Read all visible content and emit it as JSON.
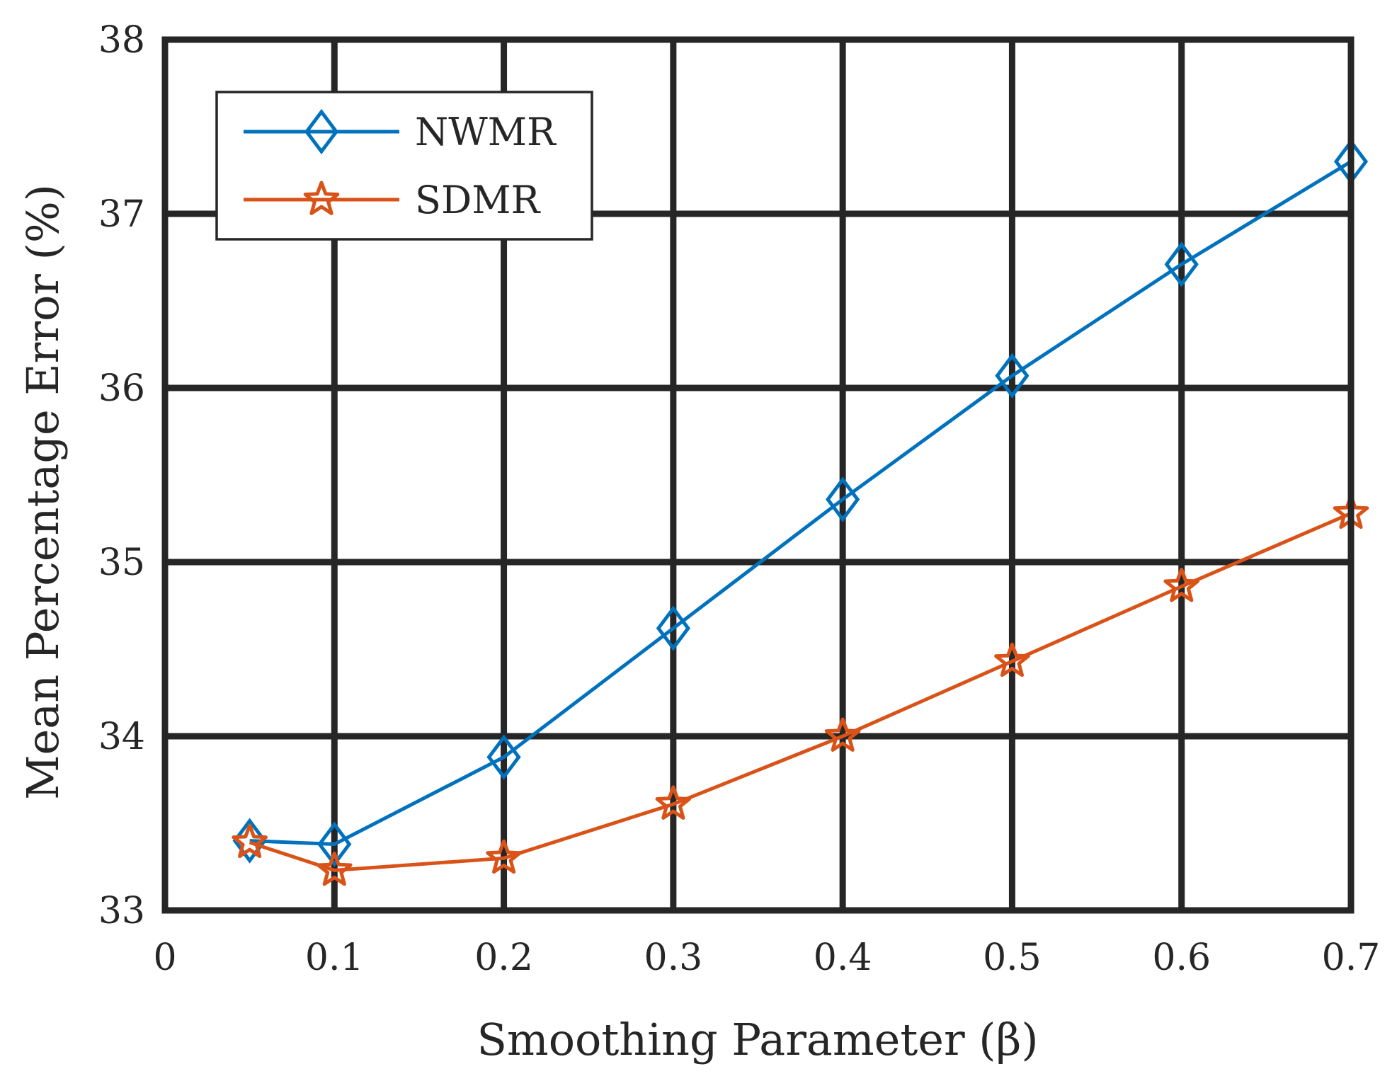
{
  "chart_data": {
    "type": "line",
    "title": "",
    "xlabel": "Smoothing Parameter (β)",
    "ylabel": "Mean Percentage Error (%)",
    "xlim": [
      0,
      0.7
    ],
    "ylim": [
      33,
      38
    ],
    "xticks": [
      0,
      0.1,
      0.2,
      0.3,
      0.4,
      0.5,
      0.6,
      0.7
    ],
    "xtick_labels": [
      "0",
      "0.1",
      "0.2",
      "0.3",
      "0.4",
      "0.5",
      "0.6",
      "0.7"
    ],
    "yticks": [
      33,
      34,
      35,
      36,
      37,
      38
    ],
    "ytick_labels": [
      "33",
      "34",
      "35",
      "36",
      "37",
      "38"
    ],
    "grid": true,
    "legend_position": "top-left",
    "series": [
      {
        "name": "NWMR",
        "color": "#0072BD",
        "marker": "diamond",
        "x": [
          0.05,
          0.1,
          0.2,
          0.3,
          0.4,
          0.5,
          0.6,
          0.7
        ],
        "y": [
          33.4,
          33.38,
          33.88,
          34.62,
          35.36,
          36.07,
          36.71,
          37.3
        ]
      },
      {
        "name": "SDMR",
        "color": "#D95319",
        "marker": "star",
        "x": [
          0.05,
          0.1,
          0.2,
          0.3,
          0.4,
          0.5,
          0.6,
          0.7
        ],
        "y": [
          33.39,
          33.23,
          33.3,
          33.61,
          34.0,
          34.43,
          34.86,
          35.28
        ]
      }
    ]
  }
}
